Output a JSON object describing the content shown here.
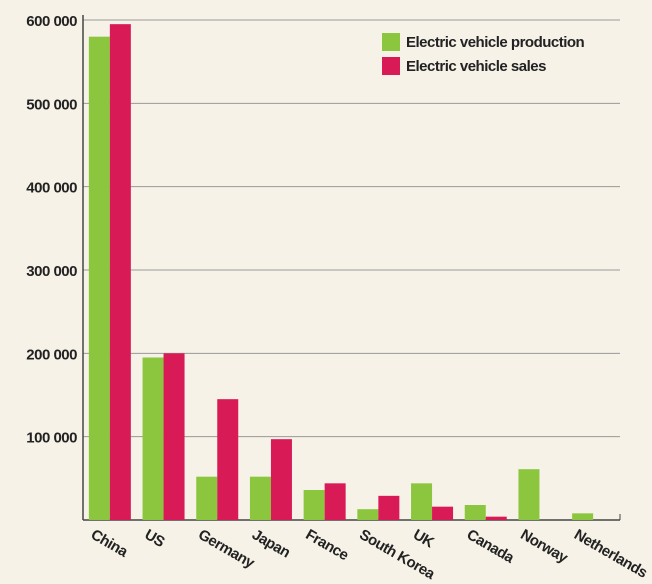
{
  "chart_data": {
    "type": "bar",
    "categories": [
      "China",
      "US",
      "Germany",
      "Japan",
      "France",
      "South Korea",
      "UK",
      "Canada",
      "Norway",
      "Netherlands"
    ],
    "series": [
      {
        "name": "Electric vehicle production",
        "color": "#8cc63f",
        "values": [
          580000,
          195000,
          52000,
          52000,
          36000,
          13000,
          44000,
          18000,
          61000,
          8000
        ]
      },
      {
        "name": "Electric vehicle sales",
        "color": "#d81b57",
        "values": [
          595000,
          200000,
          145000,
          97000,
          44000,
          29000,
          16000,
          4000,
          0,
          0
        ]
      }
    ],
    "ylim": [
      0,
      600000
    ],
    "yticks": [
      {
        "value": 100000,
        "label": "100 000"
      },
      {
        "value": 200000,
        "label": "200 000"
      },
      {
        "value": 300000,
        "label": "300 000"
      },
      {
        "value": 400000,
        "label": "400 000"
      },
      {
        "value": 500000,
        "label": "500 000"
      },
      {
        "value": 600000,
        "label": "600 000"
      }
    ],
    "grid": true,
    "legend": "upper right"
  }
}
